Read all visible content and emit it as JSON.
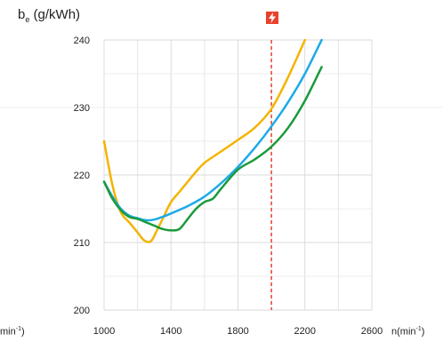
{
  "chart_data": {
    "type": "line",
    "title": "",
    "ylabel_symbol": "b",
    "ylabel_subscript": "e",
    "ylabel_unit": "(g/kWh)",
    "xlabel_left": "min",
    "xlabel_left_sup": "-1",
    "xlabel_left_close": ")",
    "xlabel_right": "n(min",
    "xlabel_right_sup": "-1",
    "xlabel_right_close": ")",
    "xlim": [
      1000,
      2600
    ],
    "ylim": [
      200,
      240
    ],
    "xticks": [
      "1000",
      "1400",
      "1800",
      "2200",
      "2600"
    ],
    "yticks": [
      "200",
      "210",
      "220",
      "230",
      "240"
    ],
    "grid": true,
    "reference_line": {
      "x": 2000,
      "color": "#e8412c",
      "style": "dashed"
    },
    "series": [
      {
        "color": "#f4b400",
        "x": [
          1000,
          1050,
          1100,
          1150,
          1200,
          1240,
          1280,
          1320,
          1360,
          1400,
          1450,
          1500,
          1550,
          1600,
          1700,
          1800,
          1900,
          2000,
          2100,
          2200
        ],
        "y": [
          225.0,
          218.5,
          214.5,
          213.0,
          211.5,
          210.3,
          210.2,
          212.0,
          214.0,
          216.0,
          217.5,
          219.0,
          220.5,
          221.8,
          223.5,
          225.2,
          227.0,
          229.8,
          234.5,
          240.0
        ]
      },
      {
        "color": "#1eaae7",
        "x": [
          1000,
          1050,
          1100,
          1150,
          1200,
          1250,
          1300,
          1350,
          1400,
          1500,
          1600,
          1700,
          1800,
          1900,
          2000,
          2100,
          2200,
          2300
        ],
        "y": [
          219.0,
          216.8,
          215.0,
          214.0,
          213.6,
          213.3,
          213.4,
          213.8,
          214.3,
          215.4,
          216.8,
          218.8,
          221.2,
          224.0,
          227.2,
          230.8,
          235.0,
          240.0
        ]
      },
      {
        "color": "#1a9a3b",
        "x": [
          1000,
          1050,
          1100,
          1150,
          1200,
          1250,
          1300,
          1350,
          1400,
          1450,
          1500,
          1550,
          1600,
          1650,
          1700,
          1800,
          1900,
          2000,
          2100,
          2200,
          2300
        ],
        "y": [
          219.0,
          216.5,
          214.8,
          213.8,
          213.5,
          213.0,
          212.5,
          212.0,
          211.8,
          212.0,
          213.5,
          215.0,
          216.0,
          216.5,
          218.0,
          220.8,
          222.3,
          224.2,
          227.0,
          231.0,
          236.0
        ]
      }
    ]
  },
  "brand": {
    "color": "#e8412c",
    "icon": "lightning-icon"
  }
}
